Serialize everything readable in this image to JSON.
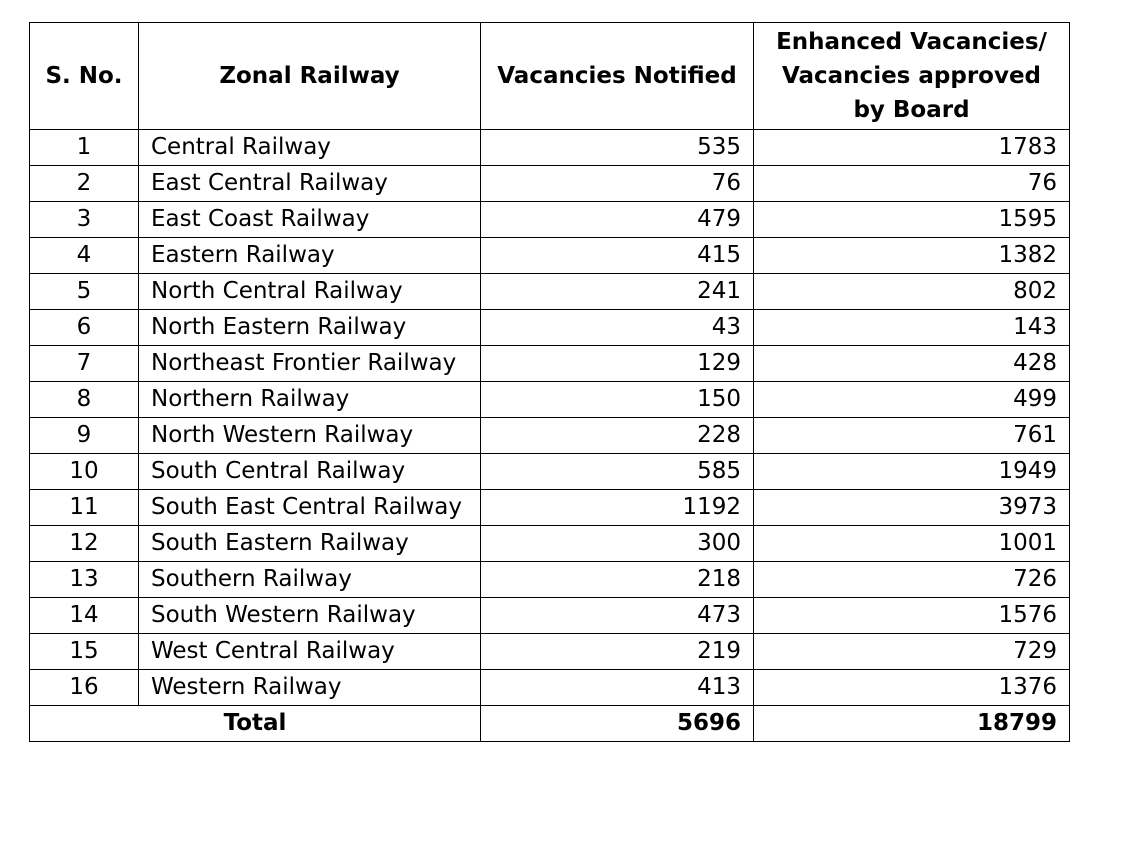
{
  "table": {
    "headers": {
      "sno": "S. No.",
      "zone": "Zonal Railway",
      "notified": "Vacancies Notified",
      "enhanced": "Enhanced Vacancies/ Vacancies approved by Board"
    },
    "rows": [
      {
        "sno": "1",
        "zone": "Central Railway",
        "notified": "535",
        "enhanced": "1783"
      },
      {
        "sno": "2",
        "zone": "East Central Railway",
        "notified": "76",
        "enhanced": "76"
      },
      {
        "sno": "3",
        "zone": "East Coast Railway",
        "notified": "479",
        "enhanced": "1595"
      },
      {
        "sno": "4",
        "zone": "Eastern Railway",
        "notified": "415",
        "enhanced": "1382"
      },
      {
        "sno": "5",
        "zone": "North Central Railway",
        "notified": "241",
        "enhanced": "802"
      },
      {
        "sno": "6",
        "zone": "North Eastern Railway",
        "notified": "43",
        "enhanced": "143"
      },
      {
        "sno": "7",
        "zone": "Northeast Frontier Railway",
        "notified": "129",
        "enhanced": "428"
      },
      {
        "sno": "8",
        "zone": "Northern Railway",
        "notified": "150",
        "enhanced": "499"
      },
      {
        "sno": "9",
        "zone": "North Western Railway",
        "notified": "228",
        "enhanced": "761"
      },
      {
        "sno": "10",
        "zone": "South Central Railway",
        "notified": "585",
        "enhanced": "1949"
      },
      {
        "sno": "11",
        "zone": "South East Central Railway",
        "notified": "1192",
        "enhanced": "3973"
      },
      {
        "sno": "12",
        "zone": "South Eastern Railway",
        "notified": "300",
        "enhanced": "1001"
      },
      {
        "sno": "13",
        "zone": "Southern Railway",
        "notified": "218",
        "enhanced": "726"
      },
      {
        "sno": "14",
        "zone": "South Western Railway",
        "notified": "473",
        "enhanced": "1576"
      },
      {
        "sno": "15",
        "zone": "West Central Railway",
        "notified": "219",
        "enhanced": "729"
      },
      {
        "sno": "16",
        "zone": "Western Railway",
        "notified": "413",
        "enhanced": "1376"
      }
    ],
    "total": {
      "label": "Total",
      "notified": "5696",
      "enhanced": "18799"
    }
  }
}
